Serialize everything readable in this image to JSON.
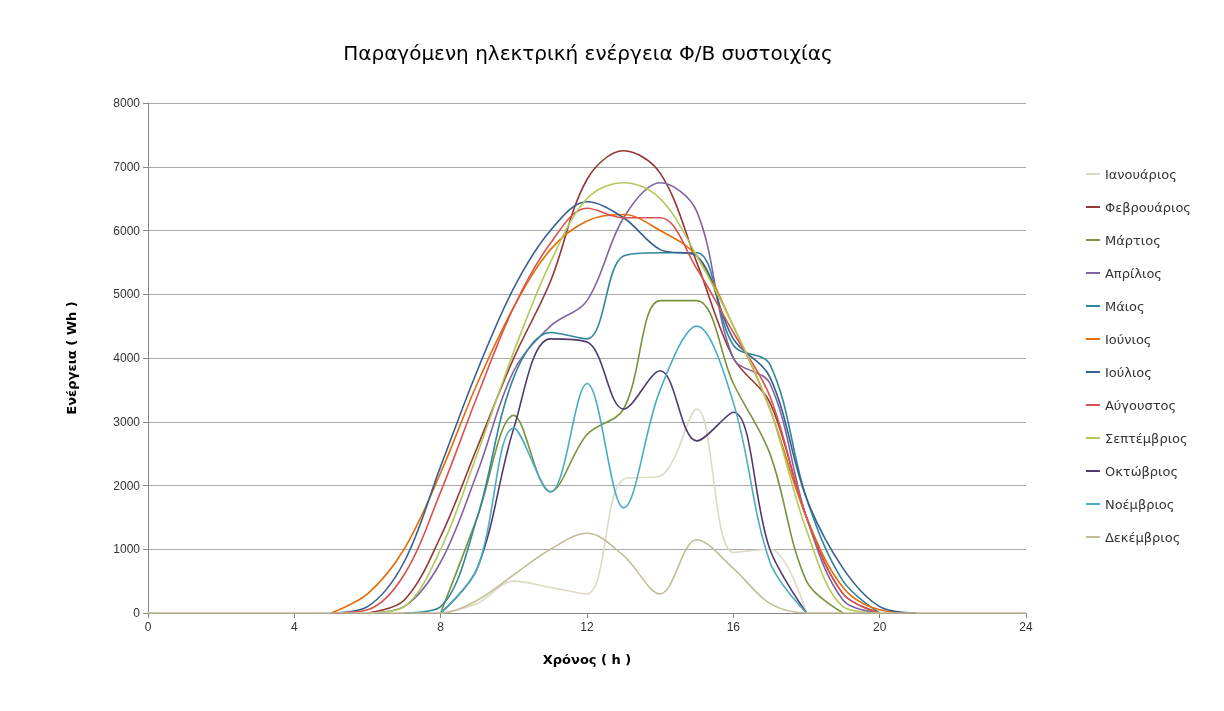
{
  "chart_data": {
    "type": "line",
    "title": "Παραγόμενη ηλεκτρική ενέργεια Φ/Β συστοιχίας",
    "xlabel": "Χρόνος ( h )",
    "ylabel": "Ενέργεια ( Wh )",
    "x": [
      0,
      1,
      2,
      3,
      4,
      5,
      6,
      7,
      8,
      9,
      10,
      11,
      12,
      13,
      14,
      15,
      16,
      17,
      18,
      19,
      20,
      21,
      22,
      23,
      24
    ],
    "series": [
      {
        "name": "Ιανουάριος",
        "color": "#ddd9c3",
        "values": [
          null,
          null,
          null,
          null,
          null,
          null,
          null,
          null,
          0,
          150,
          500,
          400,
          300,
          2100,
          2150,
          3200,
          950,
          1000,
          0,
          null,
          null,
          null,
          null,
          null,
          null
        ]
      },
      {
        "name": "Φεβρουάριος",
        "color": "#943634",
        "values": [
          null,
          null,
          null,
          null,
          null,
          null,
          0,
          200,
          1200,
          2600,
          4000,
          5200,
          6800,
          7250,
          6900,
          5500,
          4000,
          3300,
          1500,
          300,
          0,
          null,
          null,
          null,
          null
        ]
      },
      {
        "name": "Μάρτιος",
        "color": "#77933c",
        "values": [
          null,
          null,
          null,
          null,
          null,
          null,
          null,
          null,
          0,
          1500,
          3100,
          1900,
          2800,
          3200,
          4900,
          4900,
          3600,
          2500,
          500,
          0,
          null,
          null,
          null,
          null,
          null
        ]
      },
      {
        "name": "Απρίλιος",
        "color": "#8064a2",
        "values": [
          null,
          null,
          null,
          null,
          null,
          null,
          0,
          100,
          800,
          2200,
          3800,
          4500,
          4900,
          6200,
          6750,
          6300,
          4000,
          3600,
          1500,
          200,
          0,
          null,
          null,
          null,
          null
        ]
      },
      {
        "name": "Μάιος",
        "color": "#31859c",
        "values": [
          null,
          null,
          null,
          null,
          null,
          null,
          null,
          0,
          100,
          1500,
          3700,
          4400,
          4300,
          5600,
          5650,
          5650,
          4200,
          3900,
          1800,
          500,
          0,
          null,
          null,
          null,
          null
        ]
      },
      {
        "name": "Ιούνιος",
        "color": "#e46c0a",
        "values": [
          null,
          null,
          null,
          null,
          null,
          0,
          300,
          1000,
          2200,
          3600,
          4800,
          5700,
          6150,
          6250,
          6000,
          5600,
          4500,
          3200,
          1500,
          400,
          50,
          0,
          null,
          null,
          null
        ]
      },
      {
        "name": "Ιούλιος",
        "color": "#366092",
        "values": [
          null,
          null,
          null,
          null,
          null,
          0,
          100,
          800,
          2300,
          3800,
          5100,
          6000,
          6450,
          6200,
          5700,
          5600,
          4300,
          3700,
          1800,
          700,
          100,
          0,
          null,
          null,
          null
        ]
      },
      {
        "name": "Αύγουστος",
        "color": "#d9534f",
        "values": [
          null,
          null,
          null,
          null,
          null,
          0,
          50,
          600,
          1900,
          3400,
          4800,
          5800,
          6350,
          6200,
          6200,
          5400,
          4400,
          3400,
          1500,
          300,
          0,
          null,
          null,
          null,
          null
        ]
      },
      {
        "name": "Σεπτέμβριος",
        "color": "#b3c95a",
        "values": [
          null,
          null,
          null,
          null,
          null,
          null,
          0,
          100,
          1000,
          2500,
          4100,
          5500,
          6500,
          6750,
          6500,
          5600,
          4500,
          3200,
          1300,
          100,
          0,
          null,
          null,
          null,
          null
        ]
      },
      {
        "name": "Οκτώβριος",
        "color": "#4f3a6e",
        "values": [
          null,
          null,
          null,
          null,
          null,
          null,
          null,
          null,
          0,
          700,
          2900,
          4300,
          4250,
          3200,
          3800,
          2700,
          3150,
          1000,
          0,
          null,
          null,
          null,
          null,
          null,
          null
        ]
      },
      {
        "name": "Νοέμβριος",
        "color": "#4bacc6",
        "values": [
          null,
          null,
          null,
          null,
          null,
          null,
          null,
          null,
          0,
          700,
          2900,
          1900,
          3600,
          1650,
          3500,
          4500,
          3300,
          800,
          0,
          null,
          null,
          null,
          null,
          null,
          null
        ]
      },
      {
        "name": "Δεκέμβριος",
        "color": "#c4bd97",
        "values": [
          0,
          0,
          0,
          0,
          0,
          0,
          0,
          0,
          0,
          200,
          600,
          1000,
          1250,
          900,
          300,
          1150,
          700,
          150,
          0,
          0,
          0,
          0,
          0,
          0,
          0
        ]
      }
    ],
    "xlim": [
      0,
      24
    ],
    "xticks": [
      0,
      4,
      8,
      12,
      16,
      20,
      24
    ],
    "ylim": [
      0,
      8000
    ],
    "yticks": [
      0,
      1000,
      2000,
      3000,
      4000,
      5000,
      6000,
      7000,
      8000
    ],
    "grid": "y",
    "legend": "right",
    "marker": "none",
    "line_style": "solid"
  }
}
